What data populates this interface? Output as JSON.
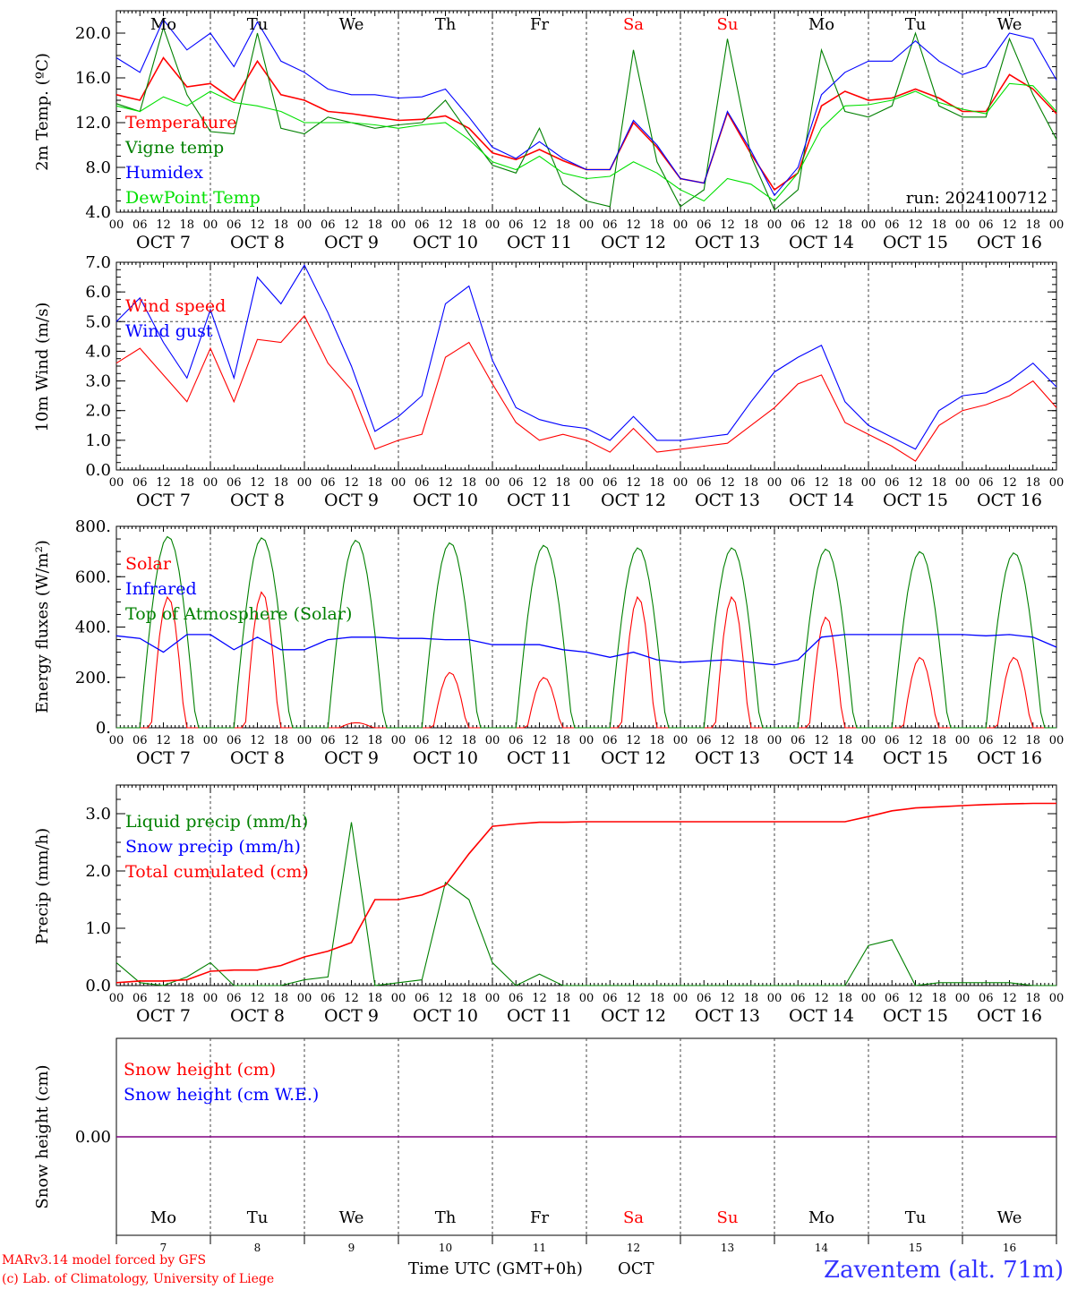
{
  "footer": {
    "credit_line1": "MARv3.14 model forced by GFS",
    "credit_line2": "(c) Lab. of Climatology, University of Liege",
    "xaxis_title": "Time UTC (GMT+0h)",
    "month_label": "OCT",
    "station": "Zaventem (alt. 71m)"
  },
  "run_label": "run: 2024100712",
  "colors": {
    "red": "#ff0000",
    "green": "#008000",
    "blue": "#0000ff",
    "lime": "#00e000",
    "purple": "#800080",
    "weekend": "#ff0000"
  },
  "chart_data": [
    {
      "type": "line",
      "ylabel": "2m Temp. (ºC)",
      "ylim": [
        4.0,
        22.0
      ],
      "yticks": [
        "4.0",
        "8.0",
        "12.0",
        "16.0",
        "20.0"
      ],
      "day_names_top": [
        "Mo",
        "Tu",
        "We",
        "Th",
        "Fr",
        "Sa",
        "Su",
        "Mo",
        "Tu",
        "We"
      ],
      "x": [
        "10-07T00",
        "10-07T06",
        "10-07T12",
        "10-07T18",
        "10-08T00",
        "10-08T06",
        "10-08T12",
        "10-08T18",
        "10-09T00",
        "10-09T06",
        "10-09T12",
        "10-09T18",
        "10-10T00",
        "10-10T06",
        "10-10T12",
        "10-10T18",
        "10-11T00",
        "10-11T06",
        "10-11T12",
        "10-11T18",
        "10-12T00",
        "10-12T06",
        "10-12T12",
        "10-12T18",
        "10-13T00",
        "10-13T06",
        "10-13T12",
        "10-13T18",
        "10-14T00",
        "10-14T06",
        "10-14T12",
        "10-14T18",
        "10-15T00",
        "10-15T06",
        "10-15T12",
        "10-15T18",
        "10-16T00",
        "10-16T06",
        "10-16T12",
        "10-16T18",
        "10-17T00"
      ],
      "series": [
        {
          "name": "Temperature",
          "color": "#ff0000",
          "values": [
            14.5,
            14.0,
            17.8,
            15.2,
            15.5,
            14.0,
            17.5,
            14.5,
            14.0,
            13.0,
            12.8,
            12.5,
            12.2,
            12.3,
            12.6,
            11.5,
            9.3,
            8.7,
            9.6,
            8.6,
            7.8,
            7.8,
            12.0,
            9.8,
            7.0,
            6.6,
            12.9,
            9.2,
            6.0,
            7.5,
            13.5,
            14.8,
            14.0,
            14.2,
            15.0,
            14.2,
            13.0,
            13.0,
            16.3,
            15.0,
            12.8
          ]
        },
        {
          "name": "Vigne temp",
          "color": "#008000",
          "values": [
            13.7,
            13.0,
            20.5,
            14.5,
            11.2,
            11.0,
            20.0,
            11.5,
            11.0,
            12.5,
            12.0,
            11.5,
            11.8,
            12.0,
            14.0,
            11.0,
            8.2,
            7.5,
            11.5,
            6.5,
            5.0,
            4.5,
            18.5,
            8.5,
            4.5,
            6.0,
            19.5,
            9.0,
            4.2,
            6.0,
            18.5,
            13.0,
            12.5,
            13.5,
            20.0,
            13.5,
            12.5,
            12.5,
            19.5,
            14.5,
            10.5
          ]
        },
        {
          "name": "Humidex",
          "color": "#0000ff",
          "values": [
            17.8,
            16.5,
            21.2,
            18.5,
            20.0,
            17.0,
            21.0,
            17.5,
            16.5,
            15.0,
            14.5,
            14.5,
            14.2,
            14.3,
            15.0,
            12.5,
            9.8,
            8.8,
            10.3,
            8.8,
            7.8,
            7.8,
            12.2,
            10.0,
            7.0,
            6.6,
            13.0,
            9.5,
            5.5,
            8.0,
            14.5,
            16.5,
            17.5,
            17.5,
            19.3,
            17.5,
            16.3,
            17.0,
            20.0,
            19.5,
            15.8
          ]
        },
        {
          "name": "DewPoint Temp",
          "color": "#00e000",
          "values": [
            13.5,
            13.0,
            14.3,
            13.5,
            14.8,
            13.8,
            13.5,
            13.0,
            12.0,
            12.0,
            12.0,
            11.8,
            11.5,
            11.8,
            12.0,
            10.5,
            8.5,
            7.8,
            9.0,
            7.5,
            7.0,
            7.2,
            8.5,
            7.5,
            6.0,
            5.0,
            7.0,
            6.5,
            5.0,
            7.5,
            11.5,
            13.5,
            13.6,
            14.0,
            14.8,
            13.8,
            13.2,
            12.8,
            15.5,
            15.3,
            13.0
          ]
        }
      ]
    },
    {
      "type": "line",
      "ylabel": "10m Wind (m/s)",
      "ylim": [
        0.0,
        7.0
      ],
      "yticks": [
        "0.0",
        "1.0",
        "2.0",
        "3.0",
        "4.0",
        "5.0",
        "6.0",
        "7.0"
      ],
      "reference_line": 5.0,
      "series": [
        {
          "name": "Wind speed",
          "color": "#ff0000",
          "values": [
            3.6,
            4.1,
            3.2,
            2.3,
            4.1,
            2.3,
            4.4,
            4.3,
            5.2,
            3.6,
            2.7,
            0.7,
            1.0,
            1.2,
            3.8,
            4.3,
            2.9,
            1.6,
            1.0,
            1.2,
            1.0,
            0.6,
            1.4,
            0.6,
            0.7,
            0.8,
            0.9,
            1.5,
            2.1,
            2.9,
            3.2,
            1.6,
            1.2,
            0.8,
            0.3,
            1.5,
            2.0,
            2.2,
            2.5,
            3.0,
            2.1
          ]
        },
        {
          "name": "Wind gust",
          "color": "#0000ff",
          "values": [
            5.0,
            5.8,
            4.3,
            3.1,
            5.4,
            3.1,
            6.5,
            5.6,
            6.9,
            5.3,
            3.5,
            1.3,
            1.8,
            2.5,
            5.6,
            6.2,
            3.7,
            2.1,
            1.7,
            1.5,
            1.4,
            1.0,
            1.8,
            1.0,
            1.0,
            1.1,
            1.2,
            2.3,
            3.3,
            3.8,
            4.2,
            2.3,
            1.5,
            1.1,
            0.7,
            2.0,
            2.5,
            2.6,
            3.0,
            3.6,
            2.8
          ]
        }
      ]
    },
    {
      "type": "line",
      "ylabel": "Energy fluxes (W/m²)",
      "ylim": [
        0,
        800
      ],
      "yticks": [
        "0.",
        "200.",
        "400.",
        "600.",
        "800."
      ],
      "series": [
        {
          "name": "Solar",
          "color": "#ff0000",
          "peaks_by_day": [
            520,
            540,
            20,
            220,
            200,
            520,
            520,
            440,
            280,
            280
          ]
        },
        {
          "name": "Infrared",
          "color": "#0000ff",
          "values": [
            365,
            355,
            300,
            370,
            370,
            310,
            360,
            310,
            310,
            350,
            360,
            360,
            355,
            355,
            350,
            350,
            330,
            330,
            330,
            310,
            300,
            280,
            300,
            270,
            260,
            265,
            270,
            260,
            250,
            270,
            360,
            370,
            370,
            370,
            370,
            370,
            370,
            365,
            370,
            360,
            320
          ]
        },
        {
          "name": "Top of Atmosphere (Solar)",
          "color": "#008000",
          "peaks_by_day": [
            760,
            755,
            745,
            735,
            725,
            715,
            715,
            710,
            700,
            695
          ]
        }
      ]
    },
    {
      "type": "line",
      "ylabel": "Precip (mm/h)",
      "ylim": [
        0.0,
        3.5
      ],
      "yticks": [
        "0.0",
        "1.0",
        "2.0",
        "3.0"
      ],
      "series": [
        {
          "name": "Liquid precip (mm/h)",
          "color": "#008000",
          "values": [
            0.4,
            0.05,
            0.0,
            0.15,
            0.4,
            0.0,
            0.0,
            0.0,
            0.1,
            0.15,
            2.85,
            0.0,
            0.05,
            0.1,
            1.8,
            1.5,
            0.4,
            0.0,
            0.2,
            0.0,
            0.0,
            0.0,
            0.0,
            0.0,
            0.0,
            0.0,
            0.0,
            0.0,
            0.0,
            0.0,
            0.0,
            0.0,
            0.7,
            0.8,
            0.0,
            0.05,
            0.05,
            0.05,
            0.05,
            0.0,
            0.0
          ]
        },
        {
          "name": "Snow precip (mm/h)",
          "color": "#0000ff",
          "values": []
        },
        {
          "name": "Total cumulated (cm)",
          "color": "#ff0000",
          "values": [
            0.05,
            0.08,
            0.08,
            0.1,
            0.25,
            0.27,
            0.27,
            0.35,
            0.5,
            0.6,
            0.75,
            1.5,
            1.5,
            1.58,
            1.75,
            2.3,
            2.78,
            2.82,
            2.85,
            2.85,
            2.86,
            2.86,
            2.86,
            2.86,
            2.86,
            2.86,
            2.86,
            2.86,
            2.86,
            2.86,
            2.86,
            2.86,
            2.95,
            3.05,
            3.1,
            3.12,
            3.14,
            3.16,
            3.17,
            3.18,
            3.18
          ]
        }
      ]
    },
    {
      "type": "line",
      "ylabel": "Snow height (cm)",
      "yticks": [
        "0.00"
      ],
      "day_names_bottom": [
        "Mo",
        "Tu",
        "We",
        "Th",
        "Fr",
        "Sa",
        "Su",
        "Mo",
        "Tu",
        "We"
      ],
      "day_numbers": [
        "7",
        "8",
        "9",
        "10",
        "11",
        "12",
        "13",
        "14",
        "15",
        "16"
      ],
      "series": [
        {
          "name": "Snow height (cm)",
          "color": "#ff0000",
          "values": [
            0.0,
            0.0
          ]
        },
        {
          "name": "Snow height (cm W.E.)",
          "color": "#0000ff",
          "values": [
            0.0,
            0.0
          ]
        }
      ]
    }
  ],
  "x_axis": {
    "hour_labels": [
      "00",
      "06",
      "12",
      "18"
    ],
    "date_labels": [
      "OCT  7",
      "OCT  8",
      "OCT  9",
      "OCT 10",
      "OCT 11",
      "OCT 12",
      "OCT 13",
      "OCT 14",
      "OCT 15",
      "OCT 16"
    ],
    "weekend_days": [
      5,
      6
    ]
  }
}
